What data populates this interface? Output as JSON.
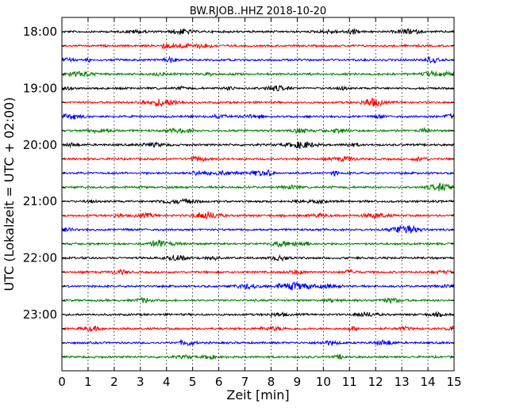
{
  "chart_data": {
    "type": "line",
    "title": "BW.RJOB..HHZ 2018-10-20",
    "xlabel": "Zeit  [min]",
    "ylabel": "UTC (Lokalzeit = UTC + 02:00)",
    "xlim": [
      0,
      15
    ],
    "x_ticks": [
      "0",
      "1",
      "2",
      "3",
      "4",
      "5",
      "6",
      "7",
      "8",
      "9",
      "10",
      "11",
      "12",
      "13",
      "14",
      "15"
    ],
    "y_tick_labels": [
      "18:00",
      "19:00",
      "20:00",
      "21:00",
      "22:00",
      "23:00"
    ],
    "grid": "vertical dotted lines at each minute",
    "trace_interval_minutes": 15,
    "trace_colors": [
      "#000000",
      "#ff0000",
      "#0000ff",
      "#008000"
    ],
    "traces": [
      {
        "start": "18:00",
        "color": "#000000"
      },
      {
        "start": "18:15",
        "color": "#ff0000"
      },
      {
        "start": "18:30",
        "color": "#0000ff"
      },
      {
        "start": "18:45",
        "color": "#008000"
      },
      {
        "start": "19:00",
        "color": "#000000"
      },
      {
        "start": "19:15",
        "color": "#ff0000"
      },
      {
        "start": "19:30",
        "color": "#0000ff"
      },
      {
        "start": "19:45",
        "color": "#008000"
      },
      {
        "start": "20:00",
        "color": "#000000"
      },
      {
        "start": "20:15",
        "color": "#ff0000"
      },
      {
        "start": "20:30",
        "color": "#0000ff"
      },
      {
        "start": "20:45",
        "color": "#008000"
      },
      {
        "start": "21:00",
        "color": "#000000"
      },
      {
        "start": "21:15",
        "color": "#ff0000"
      },
      {
        "start": "21:30",
        "color": "#0000ff"
      },
      {
        "start": "21:45",
        "color": "#008000"
      },
      {
        "start": "22:00",
        "color": "#000000"
      },
      {
        "start": "22:15",
        "color": "#ff0000"
      },
      {
        "start": "22:30",
        "color": "#0000ff"
      },
      {
        "start": "22:45",
        "color": "#008000"
      },
      {
        "start": "23:00",
        "color": "#000000"
      },
      {
        "start": "23:15",
        "color": "#ff0000"
      },
      {
        "start": "23:30",
        "color": "#0000ff"
      },
      {
        "start": "23:45",
        "color": "#008000"
      }
    ]
  }
}
